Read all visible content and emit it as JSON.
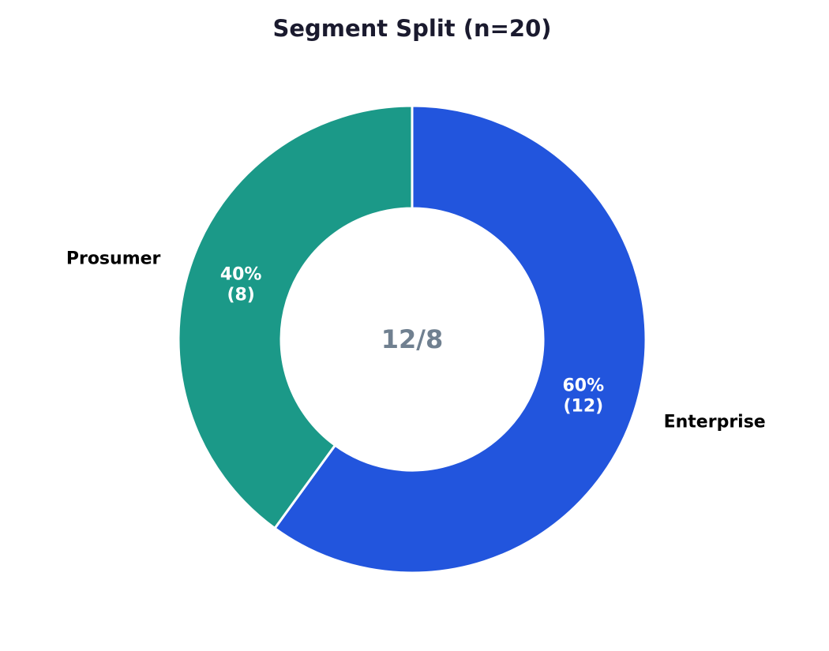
{
  "chart_data": {
    "type": "pie",
    "style": "donut",
    "title": "Segment Split  (n=20)",
    "center_text": "12/8",
    "total": 20,
    "start_angle_deg": 90,
    "direction": "clockwise",
    "slices": [
      {
        "name": "Enterprise",
        "value": 12,
        "percent": 60,
        "pct_text": "60%",
        "count_text": "(12)",
        "color": "#2255dd"
      },
      {
        "name": "Prosumer",
        "value": 8,
        "percent": 40,
        "pct_text": "40%",
        "count_text": "(8)",
        "color": "#1b9988"
      }
    ]
  }
}
